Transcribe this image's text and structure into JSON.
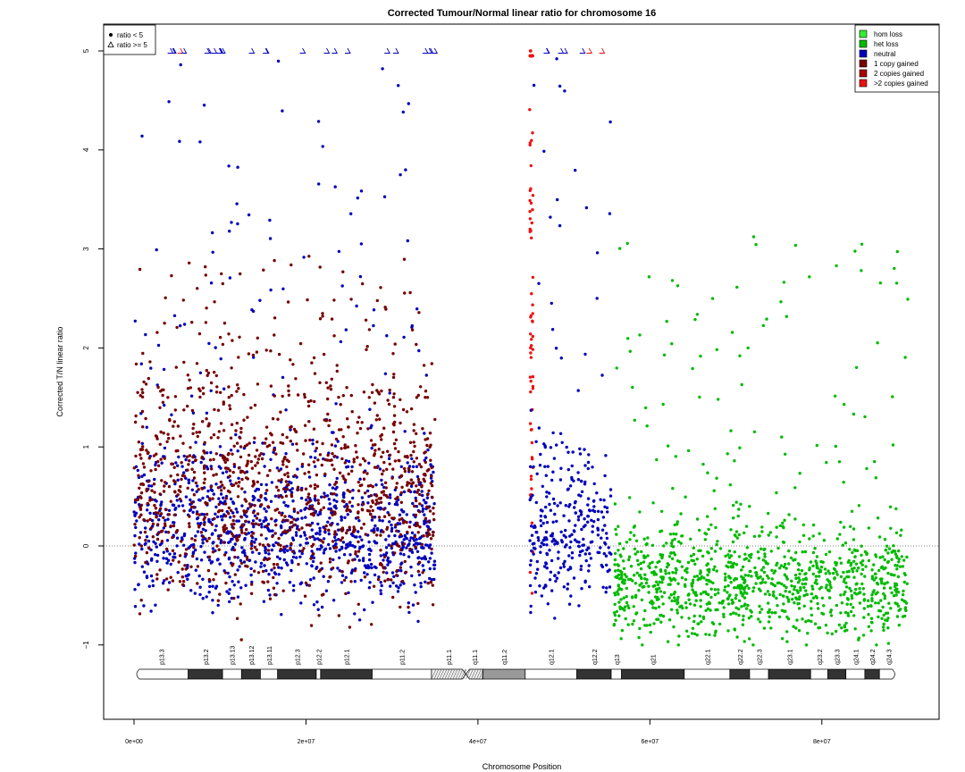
{
  "chart_data": {
    "type": "scatter",
    "title": "Corrected Tumour/Normal linear ratio for chromosome  16",
    "xlabel": "Chromosome Position",
    "ylabel": "Corrected T/N linear ratio",
    "xlim": [
      0,
      90000000
    ],
    "ylim": [
      -1,
      5
    ],
    "x_ticks": [
      {
        "value": 0,
        "label": "0e+00"
      },
      {
        "value": 20000000,
        "label": "2e+07"
      },
      {
        "value": 40000000,
        "label": "4e+07"
      },
      {
        "value": 60000000,
        "label": "6e+07"
      },
      {
        "value": 80000000,
        "label": "8e+07"
      }
    ],
    "y_ticks": [
      {
        "value": -1,
        "label": "−1"
      },
      {
        "value": 0,
        "label": "0"
      },
      {
        "value": 1,
        "label": "1"
      },
      {
        "value": 2,
        "label": "2"
      },
      {
        "value": 3,
        "label": "3"
      },
      {
        "value": 4,
        "label": "4"
      },
      {
        "value": 5,
        "label": "5"
      }
    ],
    "reference_line": {
      "y": 0,
      "style": "dotted"
    },
    "grid": false,
    "marker_legend": {
      "placement": "top-left",
      "items": [
        {
          "symbol": "filled-circle",
          "label": "ratio < 5"
        },
        {
          "symbol": "open-triangle",
          "label": "ratio >= 5"
        }
      ]
    },
    "legend": {
      "placement": "top-right",
      "items": [
        {
          "label": "hom loss",
          "color": "#33ee33"
        },
        {
          "label": "het loss",
          "color": "#00bb00"
        },
        {
          "label": "neutral",
          "color": "#0000bb"
        },
        {
          "label": "1 copy gained",
          "color": "#770000"
        },
        {
          "label": "2 copies gained",
          "color": "#aa0000"
        },
        {
          "label": ">2 copies gained",
          "color": "#ee1111"
        }
      ]
    },
    "series_density": [
      {
        "name": "neutral",
        "x_range": [
          0,
          35000000
        ],
        "y_body": [
          -0.5,
          0.8
        ],
        "y_tail_max": 5,
        "cap_at_5": true
      },
      {
        "name": "1 copy gained",
        "x_range": [
          0,
          35000000
        ],
        "y_body": [
          -0.4,
          1.5
        ],
        "y_tail_max": 3
      },
      {
        "name": ">2 copies gained",
        "x_range": [
          46000000,
          46400000
        ],
        "y_body": [
          -0.5,
          5
        ],
        "y_tail_max": 5
      },
      {
        "name": "neutral",
        "x_range": [
          46000000,
          55500000
        ],
        "y_body": [
          -0.5,
          0.8
        ],
        "y_tail_max": 5,
        "cap_at_5": true
      },
      {
        "name": "het loss",
        "x_range": [
          55500000,
          90000000
        ],
        "y_body": [
          -0.85,
          0.1
        ],
        "y_tail_max": 3.2
      }
    ],
    "ideogram": {
      "bands": [
        {
          "name": "p13.3",
          "start": 0,
          "end": 6300000,
          "stain": "gneg"
        },
        {
          "name": "p13.2",
          "start": 6300000,
          "end": 10300000,
          "stain": "gpos"
        },
        {
          "name": "p13.13",
          "start": 10300000,
          "end": 12500000,
          "stain": "gneg"
        },
        {
          "name": "p13.12",
          "start": 12500000,
          "end": 14700000,
          "stain": "gpos"
        },
        {
          "name": "p13.11",
          "start": 14700000,
          "end": 16700000,
          "stain": "gneg"
        },
        {
          "name": "p12.3",
          "start": 16700000,
          "end": 21200000,
          "stain": "gpos"
        },
        {
          "name": "p12.2",
          "start": 21200000,
          "end": 21700000,
          "stain": "gneg"
        },
        {
          "name": "p12.1",
          "start": 21700000,
          "end": 27700000,
          "stain": "gpos"
        },
        {
          "name": "p11.2",
          "start": 27700000,
          "end": 34600000,
          "stain": "gneg"
        },
        {
          "name": "p11.1",
          "start": 34600000,
          "end": 38600000,
          "stain": "acen"
        },
        {
          "name": "q11.1",
          "start": 38600000,
          "end": 40600000,
          "stain": "acen"
        },
        {
          "name": "q11.2",
          "start": 40600000,
          "end": 45500000,
          "stain": "gvar"
        },
        {
          "name": "q12.1",
          "start": 45500000,
          "end": 51500000,
          "stain": "gneg"
        },
        {
          "name": "q12.2",
          "start": 51500000,
          "end": 55500000,
          "stain": "gpos"
        },
        {
          "name": "q13",
          "start": 55500000,
          "end": 56700000,
          "stain": "gneg"
        },
        {
          "name": "q21",
          "start": 56700000,
          "end": 64000000,
          "stain": "gpos"
        },
        {
          "name": "q22.1",
          "start": 64000000,
          "end": 69300000,
          "stain": "gneg"
        },
        {
          "name": "q22.2",
          "start": 69300000,
          "end": 71600000,
          "stain": "gpos"
        },
        {
          "name": "q22.3",
          "start": 71600000,
          "end": 73800000,
          "stain": "gneg"
        },
        {
          "name": "q23.1",
          "start": 73800000,
          "end": 78700000,
          "stain": "gpos"
        },
        {
          "name": "q23.2",
          "start": 78700000,
          "end": 80700000,
          "stain": "gneg"
        },
        {
          "name": "q23.3",
          "start": 80700000,
          "end": 82800000,
          "stain": "gpos"
        },
        {
          "name": "q24.1",
          "start": 82800000,
          "end": 85000000,
          "stain": "gneg"
        },
        {
          "name": "q24.2",
          "start": 85000000,
          "end": 86700000,
          "stain": "gpos"
        },
        {
          "name": "q24.3",
          "start": 86700000,
          "end": 88800000,
          "stain": "gneg"
        }
      ]
    }
  }
}
